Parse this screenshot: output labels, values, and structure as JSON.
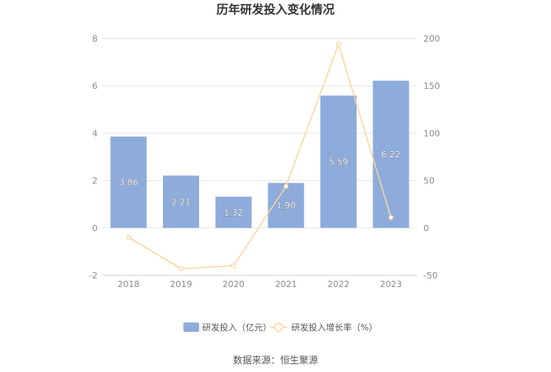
{
  "chart_data": {
    "type": "bar",
    "title": "历年研发投入变化情况",
    "categories": [
      "2018",
      "2019",
      "2020",
      "2021",
      "2022",
      "2023"
    ],
    "series": [
      {
        "name": "研发投入（亿元）",
        "type": "bar",
        "axis": "left",
        "values": [
          3.86,
          2.21,
          1.32,
          1.9,
          5.59,
          6.22
        ],
        "value_labels": [
          "3.86",
          "2.21",
          "1.32",
          "1.90",
          "5.59",
          "6.22"
        ],
        "color": "#8eacdb"
      },
      {
        "name": "研发投入增长率（%）",
        "type": "line",
        "axis": "right",
        "values": [
          -10,
          -43,
          -40,
          44,
          194,
          11
        ],
        "color": "#fad69b"
      }
    ],
    "y_left": {
      "ticks": [
        "8",
        "6",
        "4",
        "2",
        "0",
        "-2"
      ],
      "ylim": [
        -2,
        8
      ]
    },
    "y_right": {
      "ticks": [
        "200",
        "150",
        "100",
        "50",
        "0",
        "-50"
      ],
      "ylim": [
        -50,
        200
      ]
    },
    "grid": true,
    "legend_position": "bottom"
  },
  "source_text": "数据来源：恒生聚源"
}
